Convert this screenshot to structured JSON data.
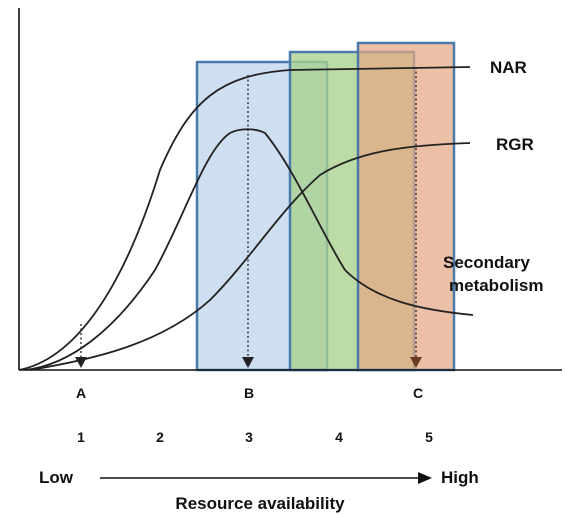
{
  "curves": {
    "nar_label": "NAR",
    "rgr_label": "RGR",
    "secondary_label_line1": "Secondary",
    "secondary_label_line2": "metabolism"
  },
  "markers": [
    "A",
    "B",
    "C"
  ],
  "zones": [
    "1",
    "2",
    "3",
    "4",
    "5"
  ],
  "axis": {
    "low_label": "Low",
    "high_label": "High",
    "title": "Resource availability"
  },
  "colors": {
    "zone_blue": "#c5d9ef",
    "zone_green": "#a9d18e",
    "zone_orange": "#e5a884",
    "box_stroke": "#4a7aab",
    "curve": "#222222"
  }
}
